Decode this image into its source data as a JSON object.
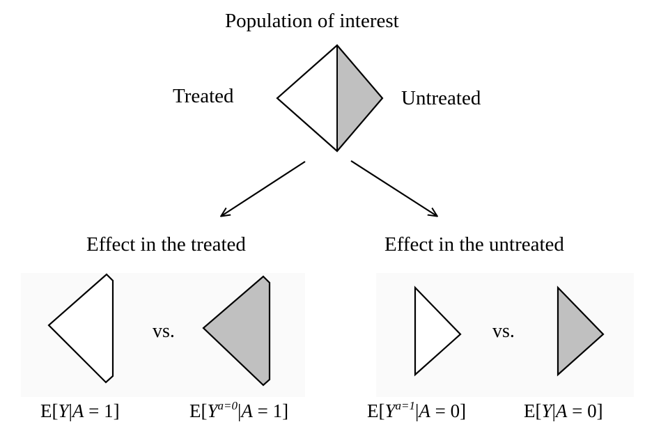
{
  "title": "Population of interest",
  "groups": {
    "treated": "Treated",
    "untreated": "Untreated"
  },
  "effects": {
    "treated": "Effect in the treated",
    "untreated": "Effect in the untreated"
  },
  "versus": "vs.",
  "expressions": {
    "e1": {
      "prefix": "E[",
      "var": "Y",
      "sup": "",
      "cond": "|",
      "given": "A",
      "rest": " = 1]"
    },
    "e2": {
      "prefix": "E[",
      "var": "Y",
      "sup": "a=0",
      "cond": "|",
      "given": "A",
      "rest": " = 1]"
    },
    "e3": {
      "prefix": "E[",
      "var": "Y",
      "sup": "a=1",
      "cond": "|",
      "given": "A",
      "rest": " = 0]"
    },
    "e4": {
      "prefix": "E[",
      "var": "Y",
      "sup": "",
      "cond": "|",
      "given": "A",
      "rest": " = 0]"
    }
  },
  "colors": {
    "shade": "#c0c0c0",
    "stroke": "#000000",
    "background": "#ffffff"
  }
}
